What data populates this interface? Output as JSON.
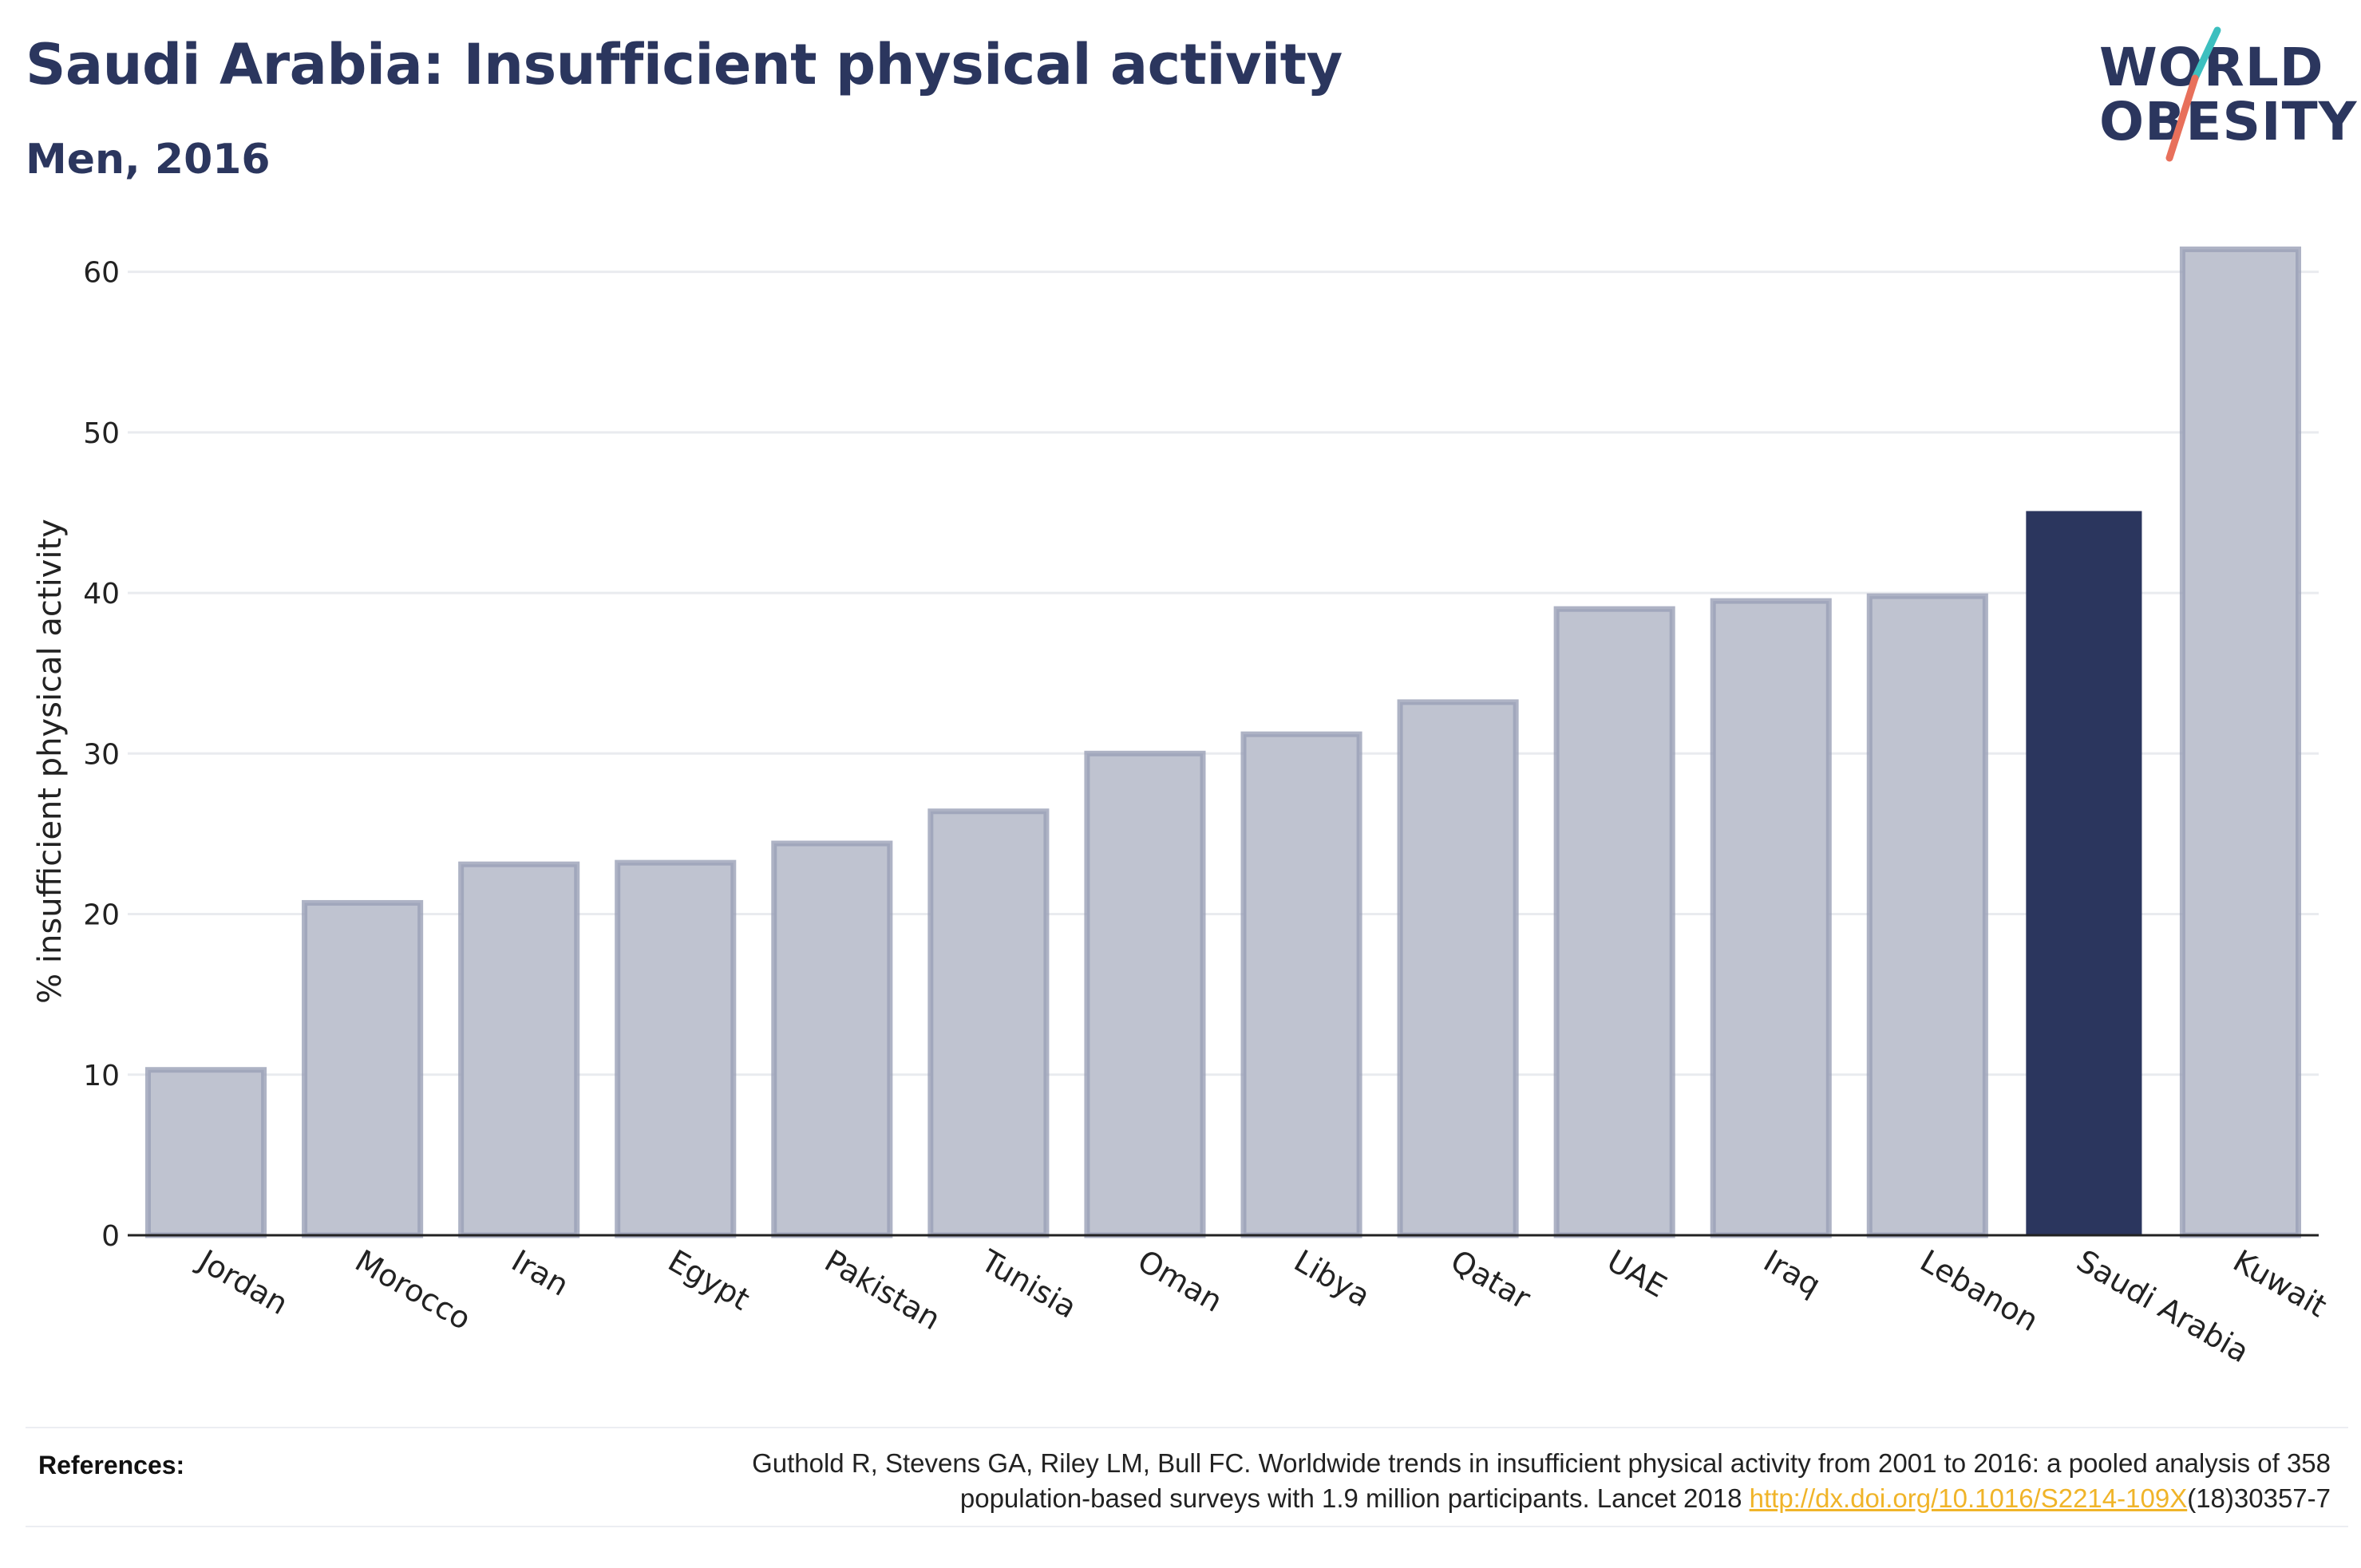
{
  "header": {
    "title": "Saudi Arabia: Insufficient physical activity",
    "subtitle": "Men, 2016"
  },
  "logo": {
    "line1": "WORLD",
    "line2": "OBESITY",
    "accent_teal": "#3cbfbf",
    "accent_coral": "#e8705b"
  },
  "colors": {
    "bar_default": "#bfc3d0",
    "bar_default_stroke": "#9aa0b7",
    "bar_highlight": "#2b365e",
    "grid": "#e9ebef",
    "axis": "#222222",
    "text": "#2b365e"
  },
  "chart_data": {
    "type": "bar",
    "ylabel": "% insufficient physical activity",
    "ylim": [
      0,
      65
    ],
    "yticks": [
      0,
      10,
      20,
      30,
      40,
      50,
      60
    ],
    "grid": true,
    "categories": [
      "Jordan",
      "Morocco",
      "Iran",
      "Egypt",
      "Pakistan",
      "Tunisia",
      "Oman",
      "Libya",
      "Qatar",
      "UAE",
      "Iraq",
      "Lebanon",
      "Saudi Arabia",
      "Kuwait"
    ],
    "values": [
      10.3,
      20.7,
      23.1,
      23.2,
      24.4,
      26.4,
      30.0,
      31.2,
      33.2,
      39.0,
      39.5,
      39.8,
      45.1,
      61.4
    ],
    "highlight": "Saudi Arabia"
  },
  "references": {
    "label": "References:",
    "text_line1": "Guthold R, Stevens GA, Riley LM, Bull FC. Worldwide trends in insufficient physical activity from 2001 to 2016: a pooled analysis of 358",
    "text_line2_before": "population-based surveys with 1.9 million participants. Lancet 2018 ",
    "link": "http://dx.doi.org/10.1016/S2214-109X",
    "text_line2_after": "(18)30357-7"
  }
}
